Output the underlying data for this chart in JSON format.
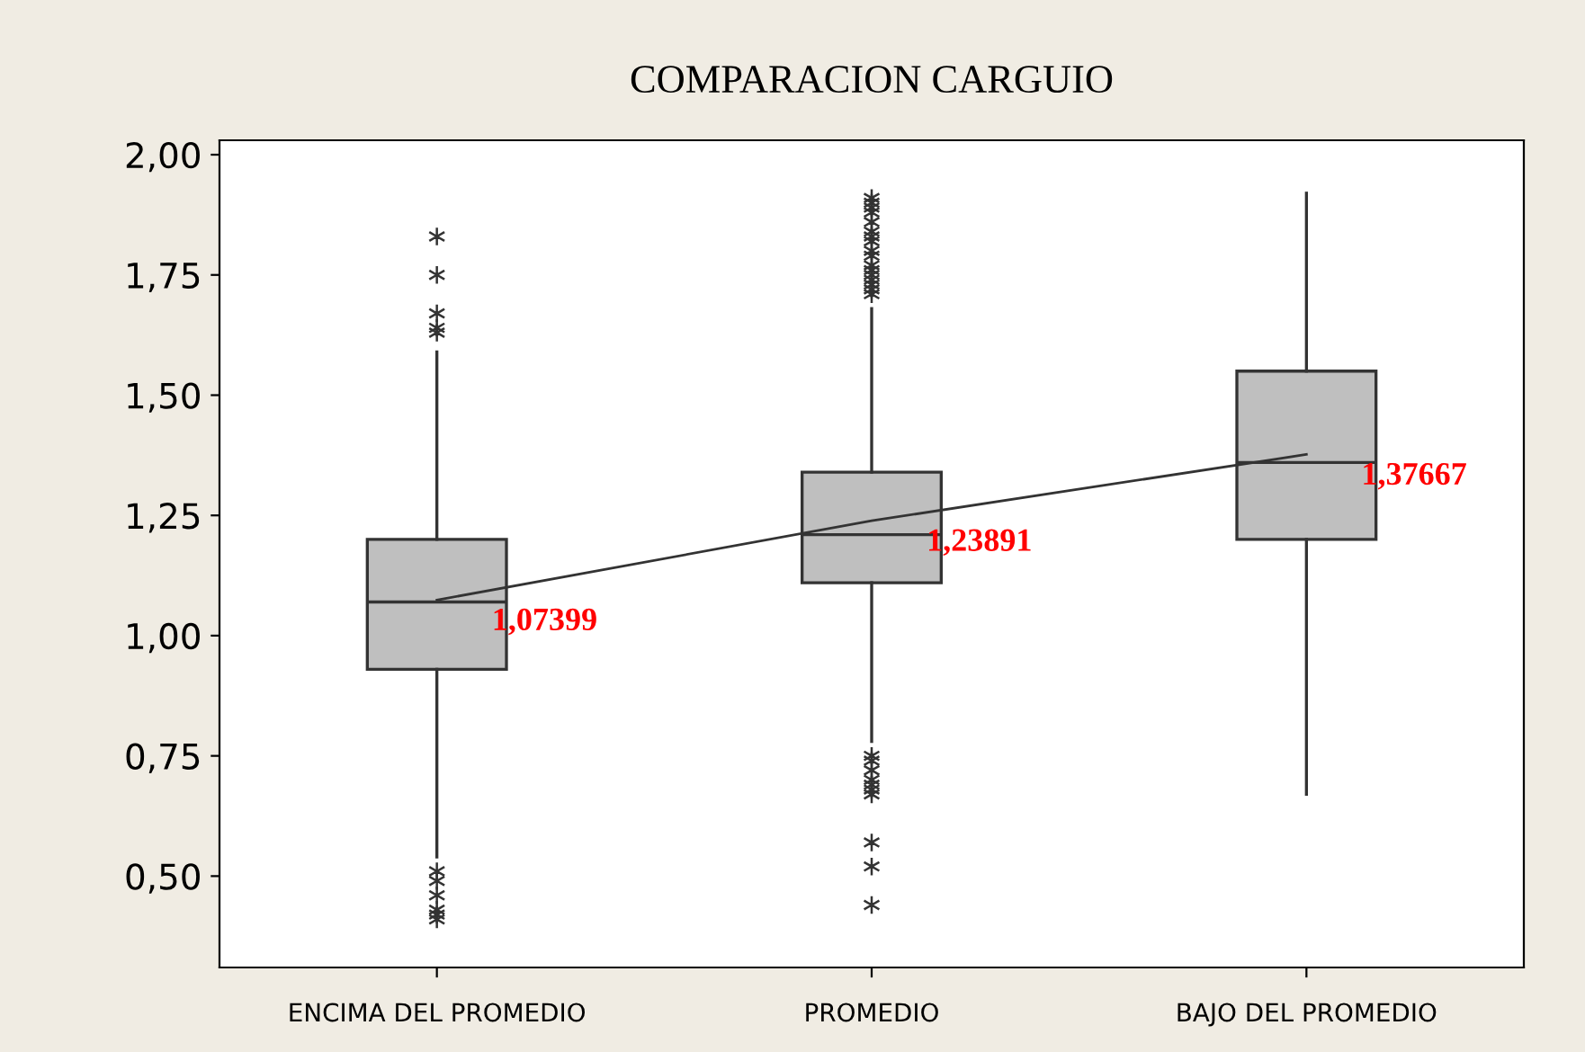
{
  "chart_data": {
    "type": "box",
    "title": "COMPARACION CARGUIO",
    "categories": [
      "ENCIMA DEL PROMEDIO",
      "PROMEDIO",
      "BAJO DEL PROMEDIO"
    ],
    "boxes": [
      {
        "low": 0.54,
        "q1": 0.93,
        "median": 1.07,
        "q3": 1.2,
        "high": 1.59,
        "outliers": [
          1.83,
          1.75,
          1.67,
          1.64,
          1.63,
          0.51,
          0.49,
          0.46,
          0.43,
          0.42,
          0.41
        ]
      },
      {
        "low": 0.78,
        "q1": 1.11,
        "median": 1.21,
        "q3": 1.34,
        "high": 1.68,
        "outliers": [
          1.91,
          1.9,
          1.89,
          1.88,
          1.86,
          1.84,
          1.83,
          1.82,
          1.8,
          1.79,
          1.77,
          1.76,
          1.75,
          1.74,
          1.73,
          1.72,
          1.71,
          0.75,
          0.74,
          0.72,
          0.7,
          0.69,
          0.68,
          0.67,
          0.57,
          0.52,
          0.44
        ]
      },
      {
        "low": 0.67,
        "q1": 1.2,
        "median": 1.36,
        "q3": 1.55,
        "high": 1.92
      }
    ],
    "series": [
      {
        "type": "line",
        "color": "#333333",
        "values": [
          1.07399,
          1.23891,
          1.37667
        ]
      }
    ],
    "color": "#bfbfbf",
    "annotations": [
      "1,07399",
      "1,23891",
      "1,37667"
    ],
    "ylim": [
      0.31,
      2.03
    ],
    "yticks": [
      {
        "value": 0.5,
        "label": "0,50"
      },
      {
        "value": 0.75,
        "label": "0,75"
      },
      {
        "value": 1.0,
        "label": "1,00"
      },
      {
        "value": 1.25,
        "label": "1,25"
      },
      {
        "value": 1.5,
        "label": "1,50"
      },
      {
        "value": 1.75,
        "label": "1,75"
      },
      {
        "value": 2.0,
        "label": "2,00"
      }
    ],
    "grid": false,
    "legend": false
  }
}
